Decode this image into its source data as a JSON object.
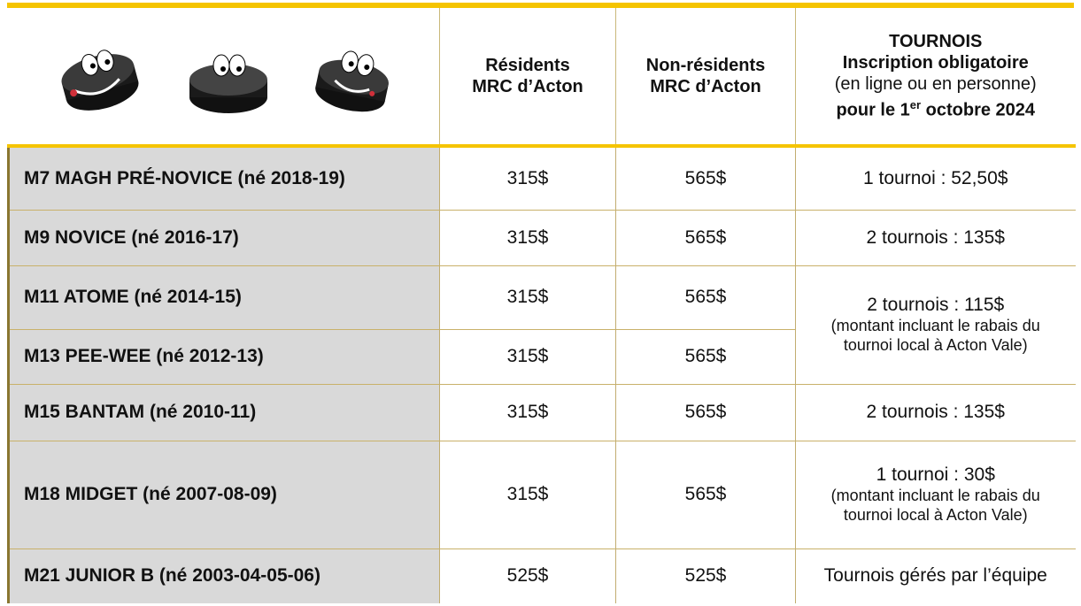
{
  "header": {
    "residents": [
      "Résidents",
      "MRC d’Acton"
    ],
    "non_residents": [
      "Non-résidents",
      "MRC d’Acton"
    ],
    "tournois": {
      "title": "TOURNOIS",
      "subtitle": "Inscription obligatoire",
      "mode": "(en ligne ou en personne)",
      "deadline_before": "pour le 1",
      "deadline_sup": "er",
      "deadline_after": " octobre 2024"
    }
  },
  "rows": [
    {
      "category": "M7 MAGH PRÉ-NOVICE (né 2018-19)",
      "residents": "315$",
      "non_residents": "565$",
      "tournois": [
        "1 tournoi : 52,50$"
      ]
    },
    {
      "category": "M9 NOVICE (né 2016-17)",
      "residents": "315$",
      "non_residents": "565$",
      "tournois": [
        "2 tournois : 135$"
      ]
    },
    {
      "category": "M11 ATOME (né 2014-15)",
      "residents": "315$",
      "non_residents": "565$",
      "tournois": [
        "2 tournois : 115$"
      ],
      "tournois_note": [
        "(montant incluant le rabais du",
        "tournoi local à Acton Vale)"
      ]
    },
    {
      "category": "M13 PEE-WEE (né 2012-13)",
      "residents": "315$",
      "non_residents": "565$"
    },
    {
      "category": "M15 BANTAM (né 2010-11)",
      "residents": "315$",
      "non_residents": "565$",
      "tournois": [
        "2 tournois : 135$"
      ]
    },
    {
      "category": "M18 MIDGET (né 2007-08-09)",
      "residents": "315$",
      "non_residents": "565$",
      "tournois": [
        "1 tournoi : 30$"
      ],
      "tournois_note": [
        "(montant incluant le rabais du",
        "tournoi local à Acton Vale)"
      ]
    },
    {
      "category": "M21 JUNIOR B (né 2003-04-05-06)",
      "residents": "525$",
      "non_residents": "525$",
      "tournois": [
        "Tournois gérés par l’équipe"
      ]
    }
  ]
}
